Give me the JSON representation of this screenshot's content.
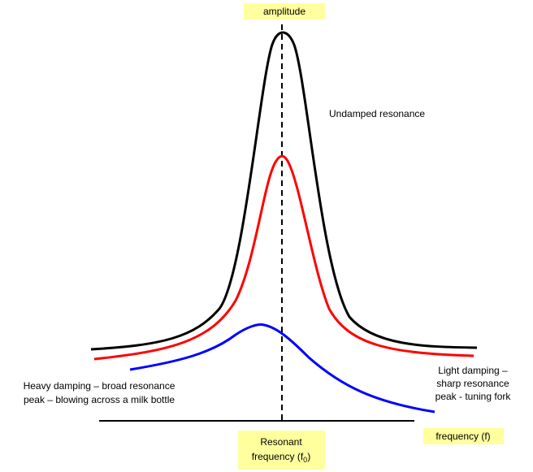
{
  "axes": {
    "y_label": "amplitude",
    "x_label": "frequency (f)"
  },
  "resonant_label": {
    "line1": "Resonant",
    "line2": "frequency (f",
    "subscript": "0",
    "close": ")"
  },
  "annotations": {
    "undamped": "Undamped resonance",
    "heavy_damping": [
      "Heavy damping – broad resonance",
      "peak – blowing across a milk bottle"
    ],
    "light_damping": [
      "Light damping –",
      "sharp resonance",
      "peak - tuning fork"
    ]
  }
}
